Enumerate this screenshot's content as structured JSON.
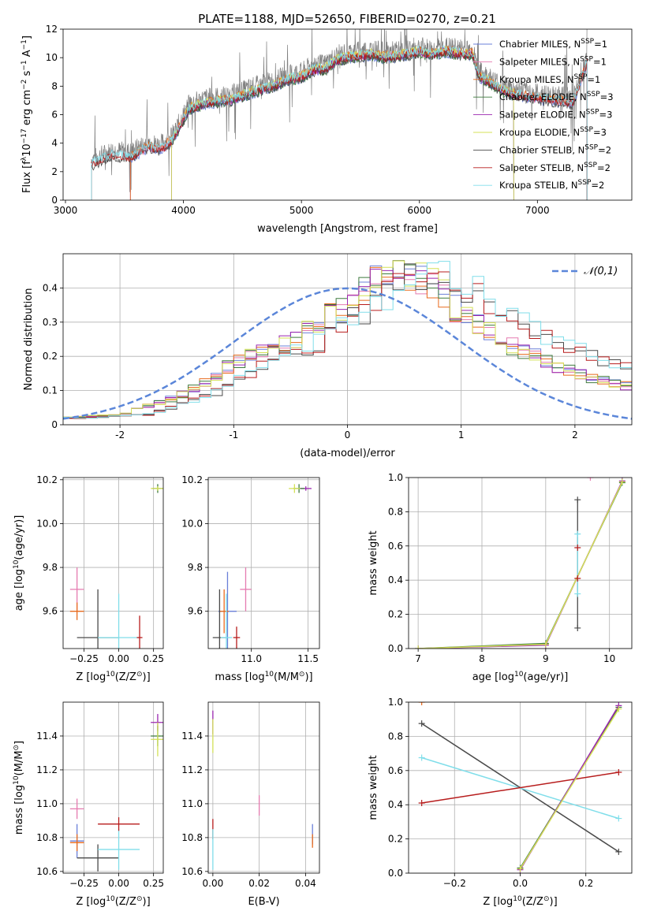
{
  "chart_data": [
    {
      "id": "spectrum",
      "type": "line",
      "title": "PLATE=1188, MJD=52650, FIBERID=0270, z=0.21",
      "xlabel": "wavelength [Angstrom, rest frame]",
      "ylabel_parts": [
        "Flux [f",
        "λ",
        "10",
        "−17",
        " erg cm",
        "−2",
        " s",
        "−1",
        " A",
        "−1",
        "]"
      ],
      "xlim": [
        2980,
        7800
      ],
      "ylim": [
        0,
        12
      ],
      "xticks": [
        3000,
        4000,
        5000,
        6000,
        7000
      ],
      "yticks": [
        0,
        2,
        4,
        6,
        8,
        10,
        12
      ],
      "grid": false,
      "data_series_color": "#808080",
      "data_knots": {
        "x": [
          3220,
          3400,
          3550,
          3700,
          3800,
          3900,
          3960,
          4050,
          4200,
          4400,
          4600,
          4800,
          4900,
          5000,
          5100,
          5200,
          5300,
          5400,
          5500,
          5600,
          5700,
          5800,
          5900,
          6000,
          6100,
          6200,
          6300,
          6400,
          6450,
          6500,
          6600,
          6700,
          6800,
          7000,
          7200,
          7300,
          7420
        ],
        "y": [
          2.9,
          3.5,
          3.4,
          4.1,
          3.9,
          4.5,
          5.4,
          6.8,
          7.2,
          7.4,
          8.0,
          8.5,
          8.9,
          9.0,
          9.5,
          9.6,
          10.2,
          10.4,
          10.5,
          10.6,
          10.4,
          10.5,
          10.6,
          10.8,
          10.6,
          10.8,
          10.7,
          10.6,
          10.6,
          9.1,
          8.6,
          8.1,
          7.8,
          7.5,
          7.3,
          7.2,
          10.0
        ]
      },
      "legend_position": "upper right",
      "series": [
        {
          "name": "Chabrier MILES, N_SSP=1",
          "label": [
            "Chabrier MILES, N",
            "SSP",
            "=1"
          ],
          "color": "#6a7fd8",
          "start": 3550,
          "end": 7420
        },
        {
          "name": "Salpeter MILES, N_SSP=1",
          "label": [
            "Salpeter MILES, N",
            "SSP",
            "=1"
          ],
          "color": "#e57bb0",
          "start": 3550,
          "end": 7420
        },
        {
          "name": "Kroupa MILES, N_SSP=1",
          "label": [
            "Kroupa MILES, N",
            "SSP",
            "=1"
          ],
          "color": "#e86a1c",
          "start": 3550,
          "end": 7420
        },
        {
          "name": "Chabrier ELODIE, N_SSP=3",
          "label": [
            "Chabrier ELODIE, N",
            "SSP",
            "=3"
          ],
          "color": "#3f7a3f",
          "start": 3900,
          "end": 6800
        },
        {
          "name": "Salpeter ELODIE, N_SSP=3",
          "label": [
            "Salpeter ELODIE, N",
            "SSP",
            "=3"
          ],
          "color": "#9b27b0",
          "start": 3900,
          "end": 6800
        },
        {
          "name": "Kroupa ELODIE, N_SSP=3",
          "label": [
            "Kroupa ELODIE, N",
            "SSP",
            "=3"
          ],
          "color": "#d4e157",
          "start": 3900,
          "end": 6800
        },
        {
          "name": "Chabrier STELIB, N_SSP=2",
          "label": [
            "Chabrier STELIB, N",
            "SSP",
            "=2"
          ],
          "color": "#4a4a4a",
          "start": 3220,
          "end": 7420
        },
        {
          "name": "Salpeter STELIB, N_SSP=2",
          "label": [
            "Salpeter STELIB, N",
            "SSP",
            "=2"
          ],
          "color": "#b71c1c",
          "start": 3220,
          "end": 7420
        },
        {
          "name": "Kroupa STELIB, N_SSP=2",
          "label": [
            "Kroupa STELIB, N",
            "SSP",
            "=2"
          ],
          "color": "#80deea",
          "start": 3220,
          "end": 7420
        }
      ]
    },
    {
      "id": "residuals",
      "type": "step",
      "xlabel": "(data-model)/error",
      "ylabel": "Normed distribution",
      "xlim": [
        -2.5,
        2.5
      ],
      "ylim": [
        0,
        0.5
      ],
      "xticks": [
        -2,
        -1,
        0,
        1,
        2
      ],
      "yticks": [
        0,
        0.1,
        0.2,
        0.3,
        0.4
      ],
      "grid": true,
      "legend": "𝒩(0,1)",
      "normal_color": "#5b86d9",
      "bin_width": 0.1,
      "step_profile": {
        "x": [
          -2.5,
          -2.0,
          -1.5,
          -1.2,
          -1.0,
          -0.5,
          0.0,
          0.3,
          0.6,
          0.8,
          1.0,
          1.2,
          1.5,
          2.0,
          2.5
        ],
        "y": [
          0.02,
          0.03,
          0.08,
          0.13,
          0.18,
          0.24,
          0.35,
          0.43,
          0.44,
          0.4,
          0.32,
          0.28,
          0.22,
          0.15,
          0.11
        ]
      },
      "series_colors": [
        "#6a7fd8",
        "#e57bb0",
        "#e86a1c",
        "#3f7a3f",
        "#9b27b0",
        "#d4e157",
        "#4a4a4a",
        "#b71c1c",
        "#80deea"
      ]
    },
    {
      "id": "age_vs_Z",
      "type": "errorbar",
      "xlabel_parts": [
        "Z [log",
        "10",
        "(Z/Z",
        "⊙",
        ")]"
      ],
      "ylabel_parts": [
        "age  [log",
        "10",
        "(age/yr)]"
      ],
      "xlim": [
        -0.4,
        0.32
      ],
      "ylim": [
        9.43,
        10.21
      ],
      "xticks": [
        -0.25,
        0,
        0.25
      ],
      "xticklabels": [
        "−0.25",
        "0.00",
        "0.25"
      ],
      "yticks": [
        9.6,
        9.8,
        10.0,
        10.2
      ],
      "yticklabels": [
        "9.6",
        "9.8",
        "10.0",
        "10.2"
      ],
      "grid": true,
      "points": [
        {
          "x": 0.28,
          "y": 10.16,
          "ex": 0.04,
          "ey": 0.02,
          "color": "#3f7a3f"
        },
        {
          "x": 0.28,
          "y": 10.16,
          "ex": 0.05,
          "ey": 0.01,
          "color": "#d4e157"
        },
        {
          "x": -0.3,
          "y": 9.7,
          "ex": 0.05,
          "ey": 0.1,
          "color": "#e57bb0"
        },
        {
          "x": -0.3,
          "y": 9.6,
          "ex": 0.05,
          "ey": 0.04,
          "color": "#e86a1c"
        },
        {
          "x": -0.15,
          "y": 9.48,
          "ex": 0.15,
          "ey": 0.22,
          "color": "#4a4a4a"
        },
        {
          "x": 0.0,
          "y": 9.48,
          "ex": 0.15,
          "ey": 0.2,
          "color": "#80deea"
        },
        {
          "x": 0.15,
          "y": 9.48,
          "ex": 0.02,
          "ey": 0.1,
          "color": "#b71c1c"
        }
      ]
    },
    {
      "id": "age_vs_mass",
      "type": "errorbar",
      "xlabel_parts": [
        "mass [log",
        "10",
        "(M/M",
        "⊙",
        ")]"
      ],
      "xlim": [
        10.62,
        11.6
      ],
      "ylim": [
        9.43,
        10.21
      ],
      "xticks": [
        11.0,
        11.5
      ],
      "xticklabels": [
        "11.0",
        "11.5"
      ],
      "yticks": [
        9.6,
        9.8,
        10.0,
        10.2
      ],
      "yticklabels": [
        "9.6",
        "9.8",
        "10.0",
        "10.2"
      ],
      "grid": true,
      "points": [
        {
          "x": 11.48,
          "y": 10.16,
          "ex": 0.05,
          "ey": 0.01,
          "color": "#9b27b0"
        },
        {
          "x": 11.42,
          "y": 10.16,
          "ex": 0.05,
          "ey": 0.02,
          "color": "#3f7a3f"
        },
        {
          "x": 11.38,
          "y": 10.16,
          "ex": 0.05,
          "ey": 0.02,
          "color": "#d4e157"
        },
        {
          "x": 10.95,
          "y": 9.7,
          "ex": 0.05,
          "ey": 0.1,
          "color": "#e57bb0"
        },
        {
          "x": 10.79,
          "y": 9.6,
          "ex": 0.08,
          "ey": 0.18,
          "color": "#6a7fd8"
        },
        {
          "x": 10.76,
          "y": 9.6,
          "ex": 0.04,
          "ey": 0.1,
          "color": "#e86a1c"
        },
        {
          "x": 10.72,
          "y": 9.48,
          "ex": 0.06,
          "ey": 0.22,
          "color": "#4a4a4a"
        },
        {
          "x": 10.78,
          "y": 9.48,
          "ex": 0.05,
          "ey": 0.2,
          "color": "#80deea"
        },
        {
          "x": 10.87,
          "y": 9.48,
          "ex": 0.03,
          "ey": 0.05,
          "color": "#b71c1c"
        }
      ]
    },
    {
      "id": "weight_vs_age",
      "type": "line",
      "xlabel_parts": [
        "age  [log",
        "10",
        "(age/yr)]"
      ],
      "ylabel": "mass weight",
      "xlim": [
        6.85,
        10.35
      ],
      "ylim": [
        0,
        1
      ],
      "xticks": [
        7,
        8,
        9,
        10
      ],
      "xticklabels": [
        "7",
        "8",
        "9",
        "10"
      ],
      "yticks": [
        0,
        0.2,
        0.4,
        0.6,
        0.8,
        1.0
      ],
      "yticklabels": [
        "0.0",
        "0.2",
        "0.4",
        "0.6",
        "0.8",
        "1.0"
      ],
      "grid": true,
      "lines": [
        {
          "color": "#3f7a3f",
          "x": [
            7.0,
            9.0,
            10.2
          ],
          "y": [
            0.0,
            0.03,
            0.97
          ]
        },
        {
          "color": "#9b27b0",
          "x": [
            7.0,
            9.0,
            10.2
          ],
          "y": [
            0.0,
            0.02,
            0.98
          ]
        },
        {
          "color": "#d4e157",
          "x": [
            7.0,
            9.0,
            10.2
          ],
          "y": [
            0.0,
            0.025,
            0.975
          ]
        }
      ],
      "markers": [
        {
          "x": 9.5,
          "y": 0.87,
          "color": "#4a4a4a"
        },
        {
          "x": 9.5,
          "y": 0.12,
          "color": "#4a4a4a"
        },
        {
          "x": 9.5,
          "y": 0.67,
          "color": "#80deea"
        },
        {
          "x": 9.5,
          "y": 0.32,
          "color": "#80deea"
        },
        {
          "x": 9.5,
          "y": 0.59,
          "color": "#b71c1c"
        },
        {
          "x": 9.5,
          "y": 0.41,
          "color": "#b71c1c"
        },
        {
          "x": 9.7,
          "y": 1.0,
          "color": "#e57bb0"
        }
      ],
      "vlines": [
        {
          "x": 9.5,
          "y0": 0.12,
          "y1": 0.87,
          "color": "#4a4a4a"
        },
        {
          "x": 9.5,
          "y0": 0.32,
          "y1": 0.67,
          "color": "#80deea"
        }
      ]
    },
    {
      "id": "mass_vs_Z",
      "type": "errorbar",
      "xlabel_parts": [
        "Z [log",
        "10",
        "(Z/Z",
        "⊙",
        ")]"
      ],
      "ylabel_parts": [
        "mass [log",
        "10",
        "(M/M",
        "⊙",
        "]"
      ],
      "xlim": [
        -0.4,
        0.32
      ],
      "ylim": [
        10.59,
        11.6
      ],
      "xticks": [
        -0.25,
        0,
        0.25
      ],
      "xticklabels": [
        "−0.25",
        "0.00",
        "0.25"
      ],
      "yticks": [
        10.6,
        10.8,
        11.0,
        11.2,
        11.4
      ],
      "yticklabels": [
        "10.6",
        "10.8",
        "11.0",
        "11.2",
        "11.4"
      ],
      "grid": true,
      "points": [
        {
          "x": 0.28,
          "y": 11.48,
          "ex": 0.05,
          "ey": 0.05,
          "color": "#9b27b0"
        },
        {
          "x": 0.28,
          "y": 11.4,
          "ex": 0.05,
          "ey": 0.06,
          "color": "#3f7a3f"
        },
        {
          "x": 0.28,
          "y": 11.38,
          "ex": 0.05,
          "ey": 0.1,
          "color": "#d4e157"
        },
        {
          "x": -0.3,
          "y": 10.97,
          "ex": 0.05,
          "ey": 0.06,
          "color": "#e57bb0"
        },
        {
          "x": -0.3,
          "y": 10.78,
          "ex": 0.05,
          "ey": 0.1,
          "color": "#6a7fd8"
        },
        {
          "x": -0.3,
          "y": 10.77,
          "ex": 0.05,
          "ey": 0.05,
          "color": "#e86a1c"
        },
        {
          "x": -0.15,
          "y": 10.68,
          "ex": 0.15,
          "ey": 0.08,
          "color": "#4a4a4a"
        },
        {
          "x": 0.0,
          "y": 10.73,
          "ex": 0.15,
          "ey": 0.12,
          "color": "#80deea"
        },
        {
          "x": 0.0,
          "y": 10.88,
          "ex": 0.15,
          "ey": 0.04,
          "color": "#b71c1c"
        }
      ]
    },
    {
      "id": "mass_vs_ebv",
      "type": "errorbar",
      "xlabel": "E(B-V)",
      "xlim": [
        -0.002,
        0.046
      ],
      "ylim": [
        10.59,
        11.6
      ],
      "xticks": [
        0,
        0.02,
        0.04
      ],
      "xticklabels": [
        "0.00",
        "0.02",
        "0.04"
      ],
      "yticks": [
        10.6,
        10.8,
        11.0,
        11.2,
        11.4
      ],
      "yticklabels": [
        "10.6",
        "10.8",
        "11.0",
        "11.2",
        "11.4"
      ],
      "grid": true,
      "points": [
        {
          "x": 0.0,
          "y": 11.48,
          "ex": 0,
          "ey": 0.07,
          "color": "#9b27b0"
        },
        {
          "x": 0.0,
          "y": 11.4,
          "ex": 0,
          "ey": 0.1,
          "color": "#d4e157"
        },
        {
          "x": 0.0,
          "y": 10.85,
          "ex": 0,
          "ey": 0.06,
          "color": "#b71c1c"
        },
        {
          "x": 0.0,
          "y": 10.73,
          "ex": 0,
          "ey": 0.12,
          "color": "#80deea"
        },
        {
          "x": 0.02,
          "y": 10.99,
          "ex": 0,
          "ey": 0.06,
          "color": "#e57bb0"
        },
        {
          "x": 0.043,
          "y": 10.82,
          "ex": 0,
          "ey": 0.06,
          "color": "#6a7fd8"
        },
        {
          "x": 0.043,
          "y": 10.78,
          "ex": 0,
          "ey": 0.04,
          "color": "#e86a1c"
        }
      ]
    },
    {
      "id": "weight_vs_Z",
      "type": "line",
      "xlabel_parts": [
        "Z [log",
        "10",
        "(Z/Z",
        "⊙",
        ")]"
      ],
      "ylabel": "mass weight",
      "xlim": [
        -0.34,
        0.34
      ],
      "ylim": [
        0,
        1
      ],
      "xticks": [
        -0.2,
        0,
        0.2
      ],
      "xticklabels": [
        "−0.2",
        "0.0",
        "0.2"
      ],
      "yticks": [
        0,
        0.2,
        0.4,
        0.6,
        0.8,
        1.0
      ],
      "yticklabels": [
        "0.0",
        "0.2",
        "0.4",
        "0.6",
        "0.8",
        "1.0"
      ],
      "grid": true,
      "lines": [
        {
          "color": "#4a4a4a",
          "x": [
            -0.3,
            0.3
          ],
          "y": [
            0.875,
            0.125
          ]
        },
        {
          "color": "#80deea",
          "x": [
            -0.3,
            0.3
          ],
          "y": [
            0.675,
            0.32
          ]
        },
        {
          "color": "#b71c1c",
          "x": [
            -0.3,
            0.3
          ],
          "y": [
            0.41,
            0.59
          ]
        },
        {
          "color": "#3f7a3f",
          "x": [
            0.0,
            0.3
          ],
          "y": [
            0.03,
            0.97
          ]
        },
        {
          "color": "#9b27b0",
          "x": [
            0.0,
            0.3
          ],
          "y": [
            0.02,
            0.98
          ]
        },
        {
          "color": "#d4e157",
          "x": [
            0.0,
            0.3
          ],
          "y": [
            0.025,
            0.96
          ]
        }
      ],
      "markers": [
        {
          "x": -0.3,
          "y": 1.0,
          "color": "#e86a1c"
        }
      ]
    }
  ]
}
